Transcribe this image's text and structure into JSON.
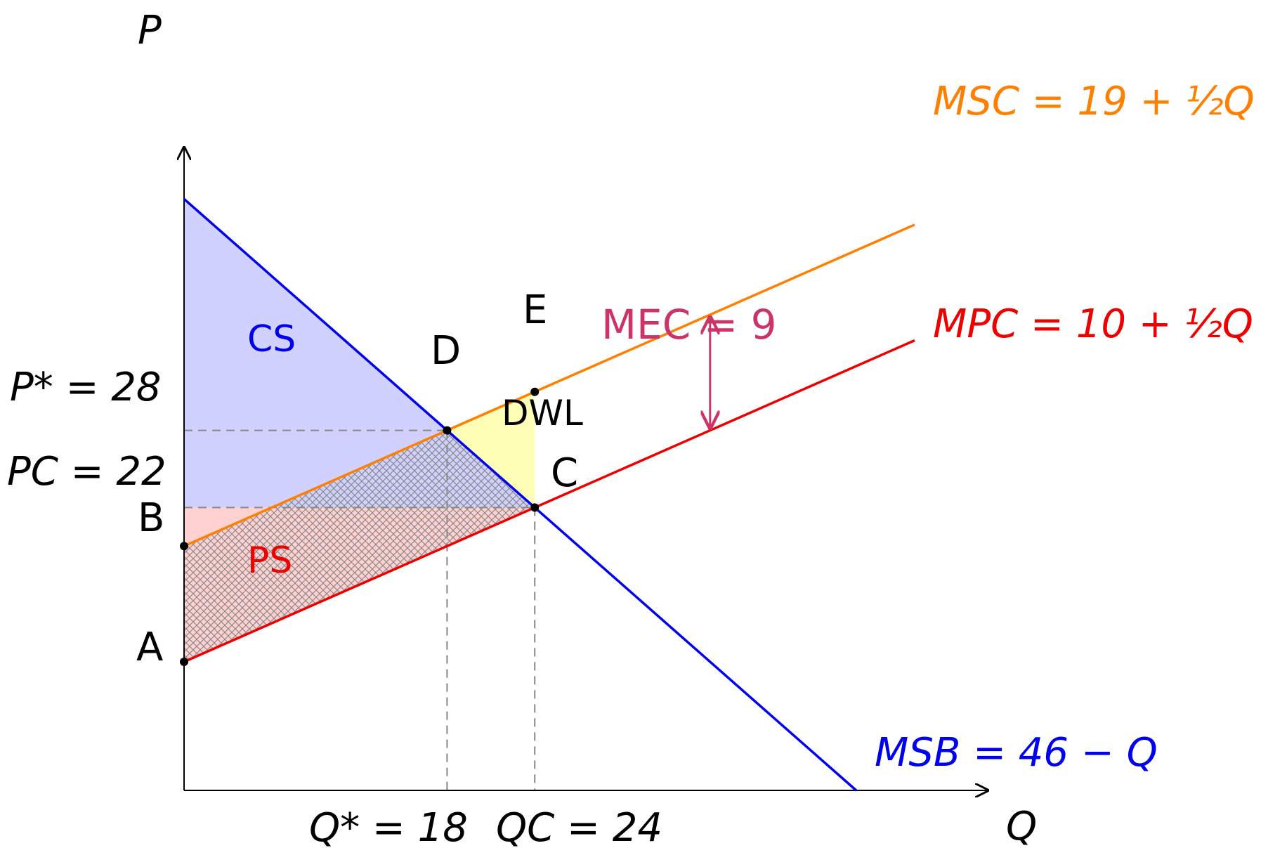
{
  "axes": {
    "y_label": "P",
    "x_label": "Q",
    "xlim": [
      0,
      55
    ],
    "ylim": [
      0,
      50
    ]
  },
  "curves": {
    "msb": {
      "label": "MSB = 46 − Q",
      "intercept": 46,
      "slope": -1,
      "q_max": 46,
      "color": "#0000ee"
    },
    "mpc": {
      "label": "MPC = 10 + ½Q",
      "intercept": 10,
      "slope": 0.5,
      "q_max": 50,
      "color": "#ee0000"
    },
    "msc": {
      "label": "MSC = 19 + ½Q",
      "intercept": 19,
      "slope": 0.5,
      "q_max": 50,
      "color": "#ff8000"
    }
  },
  "points": {
    "a": {
      "label": "A",
      "q": 0,
      "p": 10
    },
    "b": {
      "label": "B",
      "q": 0,
      "p": 19
    },
    "c": {
      "label": "C",
      "q": 24,
      "p": 22
    },
    "d": {
      "label": "D",
      "q": 18,
      "p": 28
    },
    "e": {
      "label": "E",
      "q": 24,
      "p": 31
    }
  },
  "guides": {
    "p_star": {
      "label": "P* = 28",
      "value": 28
    },
    "p_c": {
      "label": "PC = 22",
      "value": 22
    },
    "q_star": {
      "label": "Q* = 18",
      "value": 18
    },
    "q_c": {
      "label": "QC = 24",
      "value": 24
    }
  },
  "regions": {
    "cs": {
      "label": "CS",
      "color": "#b3b3ff"
    },
    "ps": {
      "label": "PS",
      "color": "#ffb3b3"
    },
    "dwl": {
      "label": "DWL",
      "color": "#ffff99"
    }
  },
  "mec": {
    "label": "MEC = 9",
    "q": 36,
    "color": "#cc3366"
  }
}
